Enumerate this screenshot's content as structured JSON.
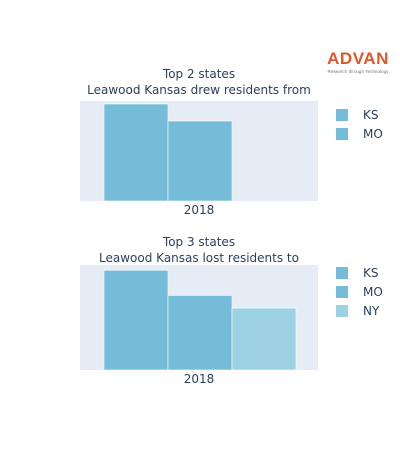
{
  "logo": {
    "text": "ADVAN",
    "tagline": "Research through Technology"
  },
  "chart_data": [
    {
      "type": "bar",
      "title": [
        "Top 2 states",
        "Leawood Kansas drew residents from"
      ],
      "categories": [
        "2018"
      ],
      "series": [
        {
          "name": "KS",
          "values": [
            97
          ],
          "color": "#74bcd8"
        },
        {
          "name": "MO",
          "values": [
            80
          ],
          "color": "#74bcd8"
        }
      ],
      "xlabel": "",
      "ylabel": "",
      "ylim": [
        0,
        100
      ],
      "y_ticks_visible": false,
      "grid": false,
      "legend_position": "right"
    },
    {
      "type": "bar",
      "title": [
        "Top 3 states",
        "Leawood Kansas lost residents to"
      ],
      "categories": [
        "2018"
      ],
      "series": [
        {
          "name": "KS",
          "values": [
            95
          ],
          "color": "#74bcd8"
        },
        {
          "name": "MO",
          "values": [
            71
          ],
          "color": "#74bcd8"
        },
        {
          "name": "NY",
          "values": [
            59
          ],
          "color": "#9dd2e3"
        }
      ],
      "xlabel": "",
      "ylabel": "",
      "ylim": [
        0,
        100
      ],
      "y_ticks_visible": false,
      "grid": false,
      "legend_position": "right"
    }
  ],
  "colors": {
    "plot_background": "#e5ecf6",
    "text": "#2a3f5f"
  }
}
